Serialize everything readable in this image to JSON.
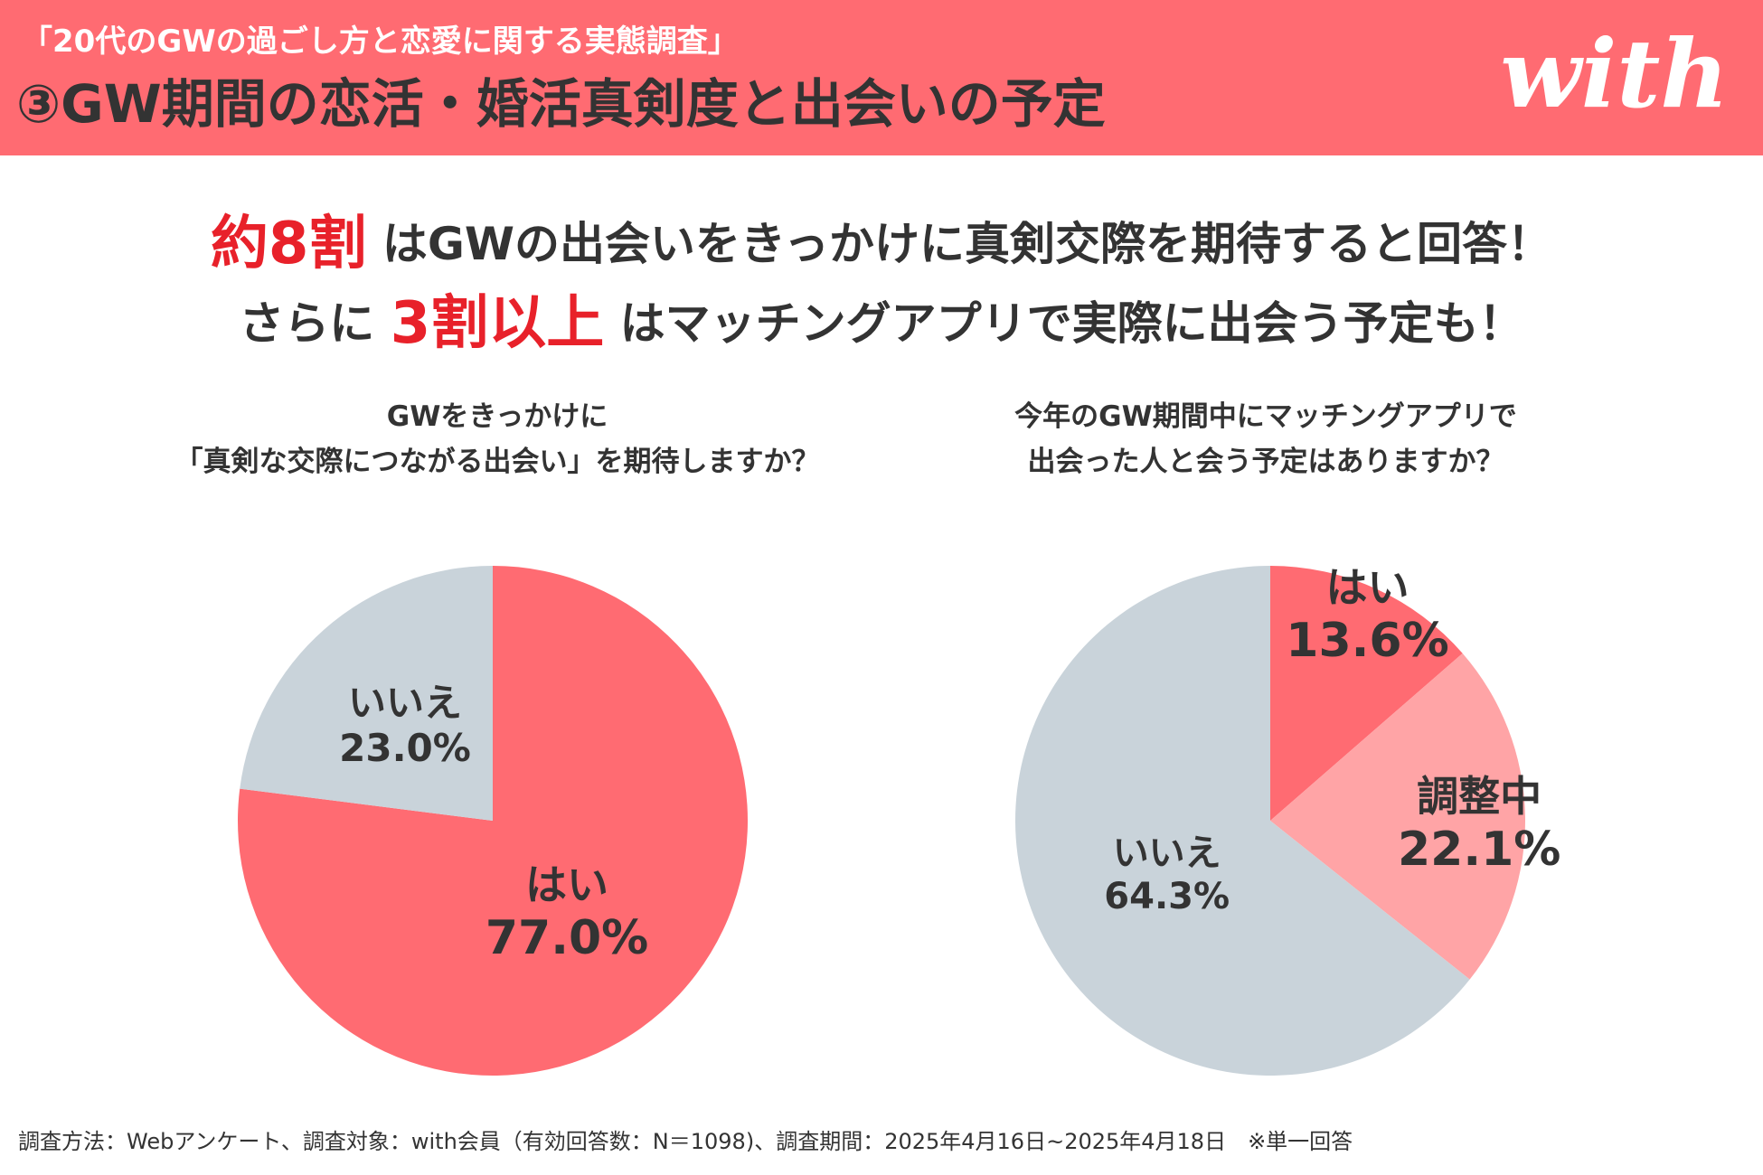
{
  "header": {
    "survey_name": "「20代のGWの過ごし方と恋愛に関する実態調査」",
    "title": "③GW期間の恋活・婚活真剣度と出会いの予定",
    "logo": "with",
    "background_color": "#ff6b72"
  },
  "headline": {
    "line1_highlight": "約8割",
    "line1_text": " はGWの出会いをきっかけに真剣交際を期待すると回答！",
    "line2_prefix": "さらに ",
    "line2_highlight": "3割以上",
    "line2_text": " はマッチングアプリで実際に出会う予定も！",
    "highlight_color": "#e8212a"
  },
  "chart_data": [
    {
      "type": "pie",
      "title_line1": "GWをきっかけに",
      "title_line2": "「真剣な交際につながる出会い」を期待しますか？",
      "slices": [
        {
          "label": "はい",
          "value": 77.0,
          "value_text": "77.0%",
          "color": "#ff6b72"
        },
        {
          "label": "いいえ",
          "value": 23.0,
          "value_text": "23.0%",
          "color": "#c9d3da"
        }
      ]
    },
    {
      "type": "pie",
      "title_line1": "今年のGW期間中にマッチングアプリで",
      "title_line2": "出会った人と会う予定はありますか？",
      "slices": [
        {
          "label": "はい",
          "value": 13.6,
          "value_text": "13.6%",
          "color": "#ff6b72"
        },
        {
          "label": "調整中",
          "value": 22.1,
          "value_text": "22.1%",
          "color": "#ffa4a6"
        },
        {
          "label": "いいえ",
          "value": 64.3,
          "value_text": "64.3%",
          "color": "#c9d3da"
        }
      ]
    }
  ],
  "footer": {
    "note": "調査方法：Webアンケート、調査対象：with会員（有効回答数：N＝1098)、調査期間：2025年4月16日~2025年4月18日　※単一回答"
  }
}
